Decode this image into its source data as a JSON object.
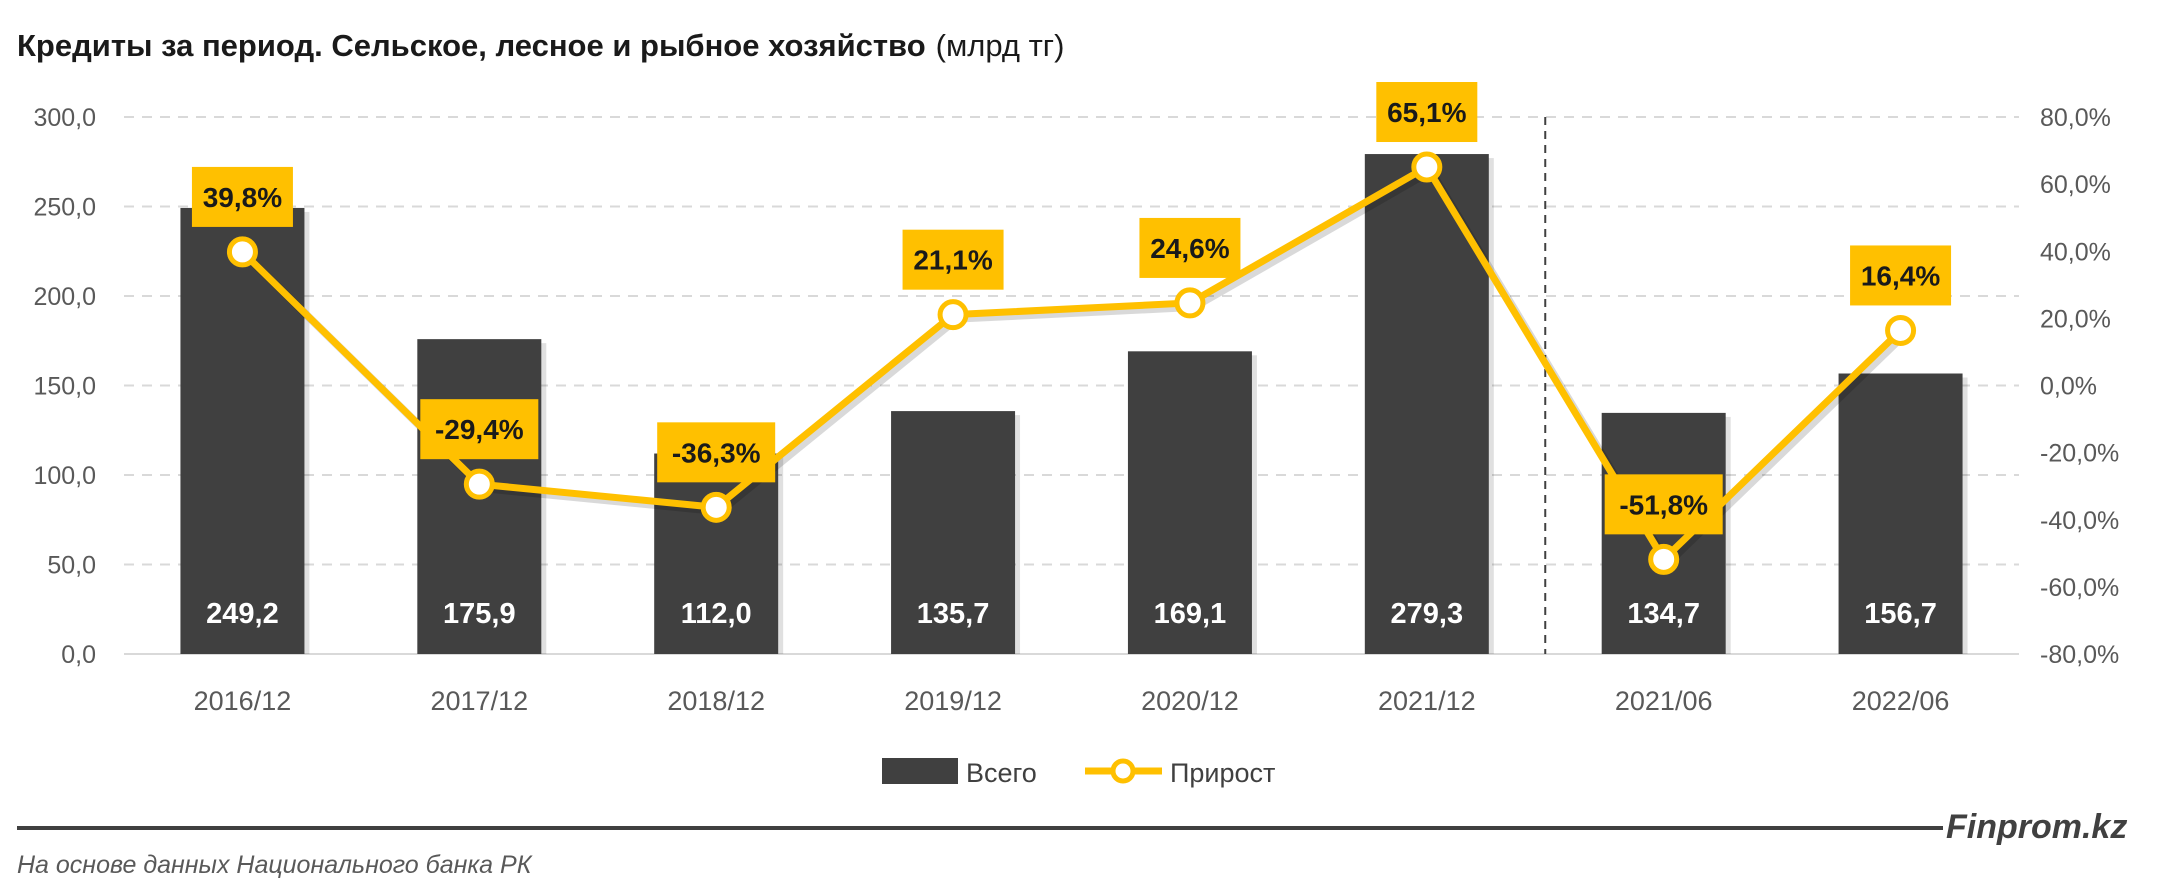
{
  "chart_data": {
    "type": "bar+line",
    "title": "Кредиты за период. Сельское, лесное и рыбное хозяйство",
    "title_unit": "(млрд тг)",
    "categories": [
      "2016/12",
      "2017/12",
      "2018/12",
      "2019/12",
      "2020/12",
      "2021/12",
      "2021/06",
      "2022/06"
    ],
    "series": [
      {
        "name": "Всего",
        "type": "bar",
        "axis": "left",
        "color": "#404040",
        "values": [
          249.2,
          175.9,
          112.0,
          135.7,
          169.1,
          279.3,
          134.7,
          156.7
        ],
        "labels": [
          "249,2",
          "175,9",
          "112,0",
          "135,7",
          "169,1",
          "279,3",
          "134,7",
          "156,7"
        ]
      },
      {
        "name": "Прирост",
        "type": "line",
        "axis": "right",
        "color": "#FFC000",
        "values": [
          39.8,
          -29.4,
          -36.3,
          21.1,
          24.6,
          65.1,
          -51.8,
          16.4
        ],
        "labels": [
          "39,8%",
          "-29,4%",
          "-36,3%",
          "21,1%",
          "24,6%",
          "65,1%",
          "-51,8%",
          "16,4%"
        ]
      }
    ],
    "left_axis": {
      "range": [
        0,
        300
      ],
      "ticks": [
        "0,0",
        "50,0",
        "100,0",
        "150,0",
        "200,0",
        "250,0",
        "300,0"
      ]
    },
    "right_axis": {
      "range": [
        -80,
        80
      ],
      "ticks": [
        "-80,0%",
        "-60,0%",
        "-40,0%",
        "-20,0%",
        "0,0%",
        "20,0%",
        "40,0%",
        "60,0%",
        "80,0%"
      ]
    },
    "grid": true,
    "separator_after_category": "2021/12",
    "legend_position": "bottom"
  },
  "brand": "Finprom.kz",
  "footnote": "На основе данных Национального банка РК"
}
